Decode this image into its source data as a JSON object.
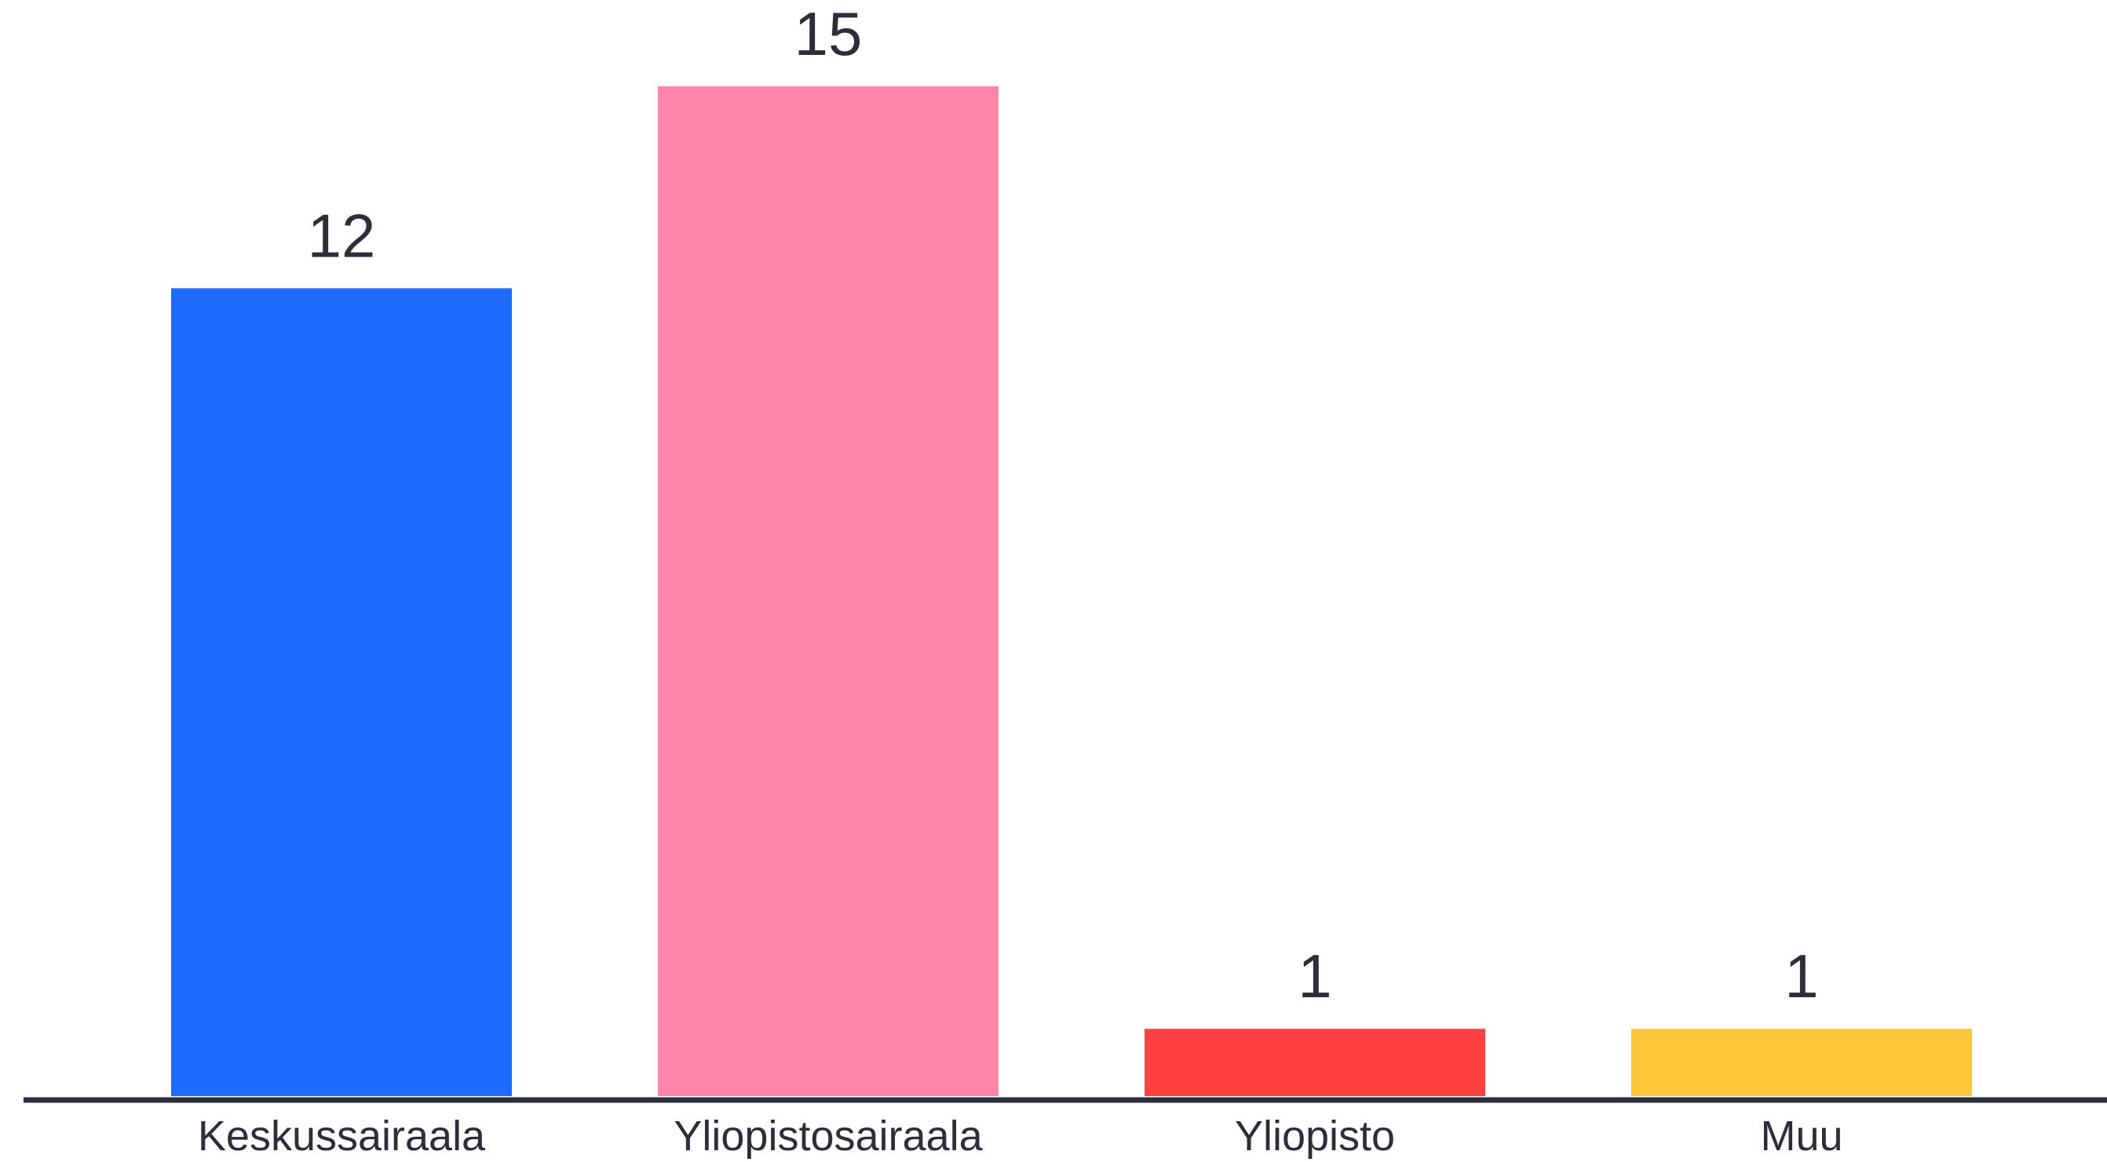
{
  "chart_data": {
    "type": "bar",
    "title": "",
    "xlabel": "",
    "ylabel": "",
    "categories": [
      "Keskussairaala",
      "Yliopistosairaala",
      "Yliopisto",
      "Muu"
    ],
    "values": [
      12,
      15,
      1,
      1
    ],
    "colors": [
      "#1f6bff",
      "#ff85ab",
      "#ff4141",
      "#fdc63b"
    ],
    "axis_color": "#2b2f38",
    "ylim": [
      0,
      15
    ],
    "grid": false,
    "legend": "none",
    "data_labels": true
  }
}
